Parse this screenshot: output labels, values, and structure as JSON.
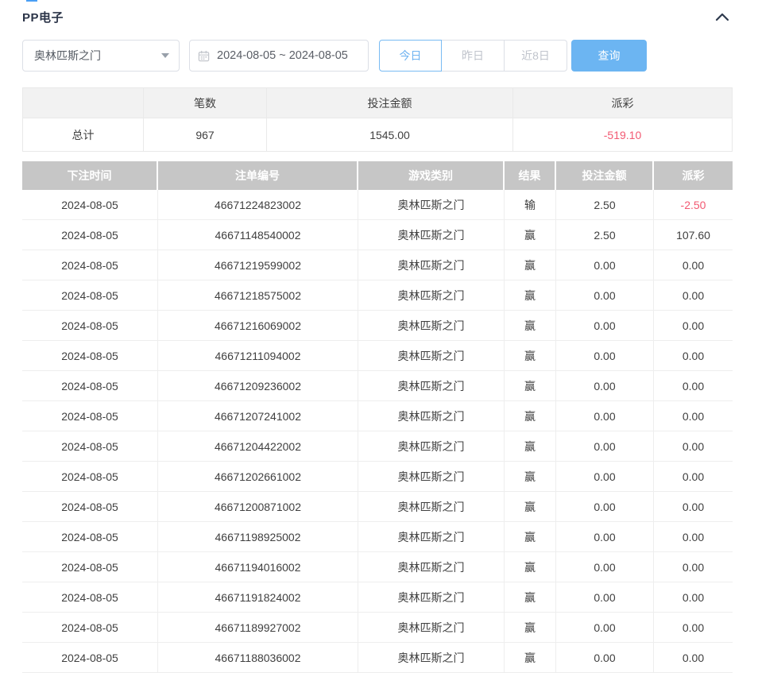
{
  "panel": {
    "title": "PP电子"
  },
  "controls": {
    "game_select": {
      "value": "奥林匹斯之门"
    },
    "date_range": {
      "value": "2024-08-05 ~ 2024-08-05"
    },
    "quick_filters": [
      {
        "name": "today",
        "label": "今日",
        "active": true
      },
      {
        "name": "yesterday",
        "label": "昨日",
        "active": false
      },
      {
        "name": "last-8-days",
        "label": "近8日",
        "active": false
      }
    ],
    "search_label": "查询"
  },
  "summary": {
    "columns": [
      "",
      "笔数",
      "投注金额",
      "派彩"
    ],
    "total": {
      "label": "总计",
      "count": "967",
      "bet_amount": "1545.00",
      "payout": "-519.10"
    }
  },
  "bet_table": {
    "columns": [
      "下注时间",
      "注单编号",
      "游戏类别",
      "结果",
      "投注金额",
      "派彩"
    ],
    "rows": [
      {
        "date": "2024-08-05",
        "bet_id": "46671224823002",
        "game": "奥林匹斯之门",
        "result": "输",
        "bet_amount": "2.50",
        "payout": "-2.50"
      },
      {
        "date": "2024-08-05",
        "bet_id": "46671148540002",
        "game": "奥林匹斯之门",
        "result": "赢",
        "bet_amount": "2.50",
        "payout": "107.60"
      },
      {
        "date": "2024-08-05",
        "bet_id": "46671219599002",
        "game": "奥林匹斯之门",
        "result": "赢",
        "bet_amount": "0.00",
        "payout": "0.00"
      },
      {
        "date": "2024-08-05",
        "bet_id": "46671218575002",
        "game": "奥林匹斯之门",
        "result": "赢",
        "bet_amount": "0.00",
        "payout": "0.00"
      },
      {
        "date": "2024-08-05",
        "bet_id": "46671216069002",
        "game": "奥林匹斯之门",
        "result": "赢",
        "bet_amount": "0.00",
        "payout": "0.00"
      },
      {
        "date": "2024-08-05",
        "bet_id": "46671211094002",
        "game": "奥林匹斯之门",
        "result": "赢",
        "bet_amount": "0.00",
        "payout": "0.00"
      },
      {
        "date": "2024-08-05",
        "bet_id": "46671209236002",
        "game": "奥林匹斯之门",
        "result": "赢",
        "bet_amount": "0.00",
        "payout": "0.00"
      },
      {
        "date": "2024-08-05",
        "bet_id": "46671207241002",
        "game": "奥林匹斯之门",
        "result": "赢",
        "bet_amount": "0.00",
        "payout": "0.00"
      },
      {
        "date": "2024-08-05",
        "bet_id": "46671204422002",
        "game": "奥林匹斯之门",
        "result": "赢",
        "bet_amount": "0.00",
        "payout": "0.00"
      },
      {
        "date": "2024-08-05",
        "bet_id": "46671202661002",
        "game": "奥林匹斯之门",
        "result": "赢",
        "bet_amount": "0.00",
        "payout": "0.00"
      },
      {
        "date": "2024-08-05",
        "bet_id": "46671200871002",
        "game": "奥林匹斯之门",
        "result": "赢",
        "bet_amount": "0.00",
        "payout": "0.00"
      },
      {
        "date": "2024-08-05",
        "bet_id": "46671198925002",
        "game": "奥林匹斯之门",
        "result": "赢",
        "bet_amount": "0.00",
        "payout": "0.00"
      },
      {
        "date": "2024-08-05",
        "bet_id": "46671194016002",
        "game": "奥林匹斯之门",
        "result": "赢",
        "bet_amount": "0.00",
        "payout": "0.00"
      },
      {
        "date": "2024-08-05",
        "bet_id": "46671191824002",
        "game": "奥林匹斯之门",
        "result": "赢",
        "bet_amount": "0.00",
        "payout": "0.00"
      },
      {
        "date": "2024-08-05",
        "bet_id": "46671189927002",
        "game": "奥林匹斯之门",
        "result": "赢",
        "bet_amount": "0.00",
        "payout": "0.00"
      },
      {
        "date": "2024-08-05",
        "bet_id": "46671188036002",
        "game": "奥林匹斯之门",
        "result": "赢",
        "bet_amount": "0.00",
        "payout": "0.00"
      }
    ]
  },
  "colors": {
    "accent_blue": "#6cb5f2",
    "negative_red": "#f25972",
    "table_header_gray": "#c6c6c6",
    "summary_header_gray": "#f2f2f2",
    "title_text": "#2b3448"
  }
}
